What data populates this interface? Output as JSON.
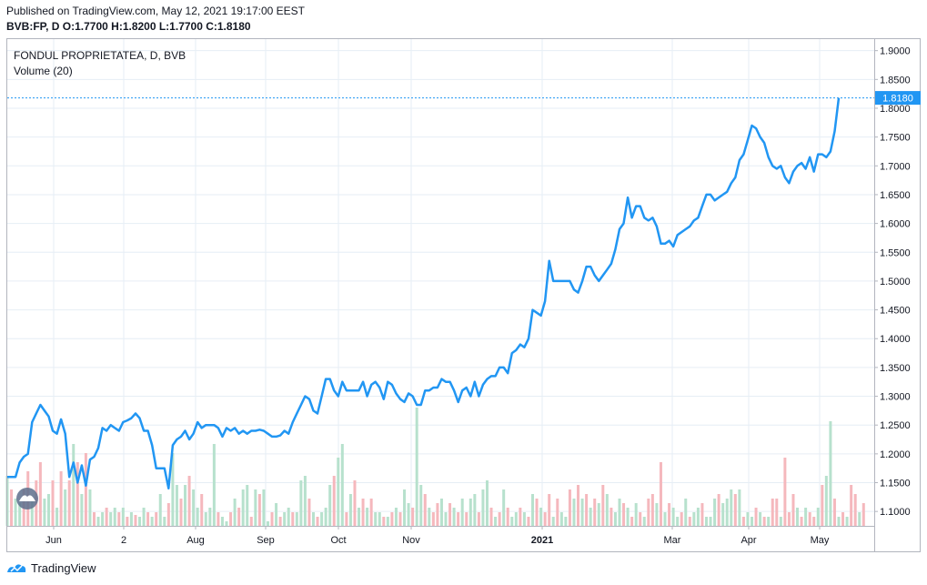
{
  "header": {
    "published": "Published on TradingView.com, May 12, 2021 19:17:00 EEST",
    "ohlc": "BVB:FP, D  O:1.7700  H:1.8200  L:1.7700  C:1.8180"
  },
  "legend": {
    "symbol": "FONDUL PROPRIETATEA, D, BVB",
    "volume": "Volume (20)"
  },
  "footer": {
    "brand": "TradingView"
  },
  "colors": {
    "line": "#2196f3",
    "last_price_label": "#2196f3",
    "volume_up": "#b7e1cd",
    "volume_down": "#f5b8bd",
    "grid": "#e6eef5"
  },
  "chart_data": {
    "type": "line",
    "title": "FONDUL PROPRIETATEA, D, BVB",
    "x_ticks": [
      "Jun",
      "2",
      "Aug",
      "Sep",
      "Oct",
      "Nov",
      "2021",
      "Mar",
      "Apr",
      "May"
    ],
    "y_ticks": [
      "1.9000",
      "1.8500",
      "1.8000",
      "1.7500",
      "1.7000",
      "1.6500",
      "1.6000",
      "1.5500",
      "1.5000",
      "1.4500",
      "1.4000",
      "1.3500",
      "1.3000",
      "1.2500",
      "1.2000",
      "1.1500",
      "1.1000"
    ],
    "ylim": [
      1.075,
      1.92
    ],
    "last_price": "1.8180",
    "grid": true,
    "series": [
      {
        "values": [
          1.16,
          1.16,
          1.16,
          1.185,
          1.195,
          1.2,
          1.255,
          1.27,
          1.285,
          1.275,
          1.265,
          1.24,
          1.235,
          1.26,
          1.235,
          1.16,
          1.185,
          1.15,
          1.18,
          1.145,
          1.19,
          1.195,
          1.21,
          1.245,
          1.24,
          1.25,
          1.245,
          1.24,
          1.255,
          1.258,
          1.262,
          1.27,
          1.262,
          1.24,
          1.24,
          1.215,
          1.175,
          1.175,
          1.175,
          1.14,
          1.215,
          1.225,
          1.23,
          1.24,
          1.225,
          1.235,
          1.255,
          1.245,
          1.25,
          1.25,
          1.25,
          1.245,
          1.23,
          1.245,
          1.24,
          1.245,
          1.235,
          1.24,
          1.235,
          1.24,
          1.24,
          1.242,
          1.24,
          1.235,
          1.23,
          1.23,
          1.232,
          1.24,
          1.235,
          1.255,
          1.27,
          1.285,
          1.3,
          1.295,
          1.275,
          1.27,
          1.3,
          1.33,
          1.33,
          1.31,
          1.3,
          1.325,
          1.31,
          1.31,
          1.31,
          1.31,
          1.325,
          1.3,
          1.32,
          1.325,
          1.315,
          1.295,
          1.325,
          1.32,
          1.305,
          1.295,
          1.29,
          1.305,
          1.3,
          1.285,
          1.285,
          1.31,
          1.31,
          1.315,
          1.315,
          1.33,
          1.325,
          1.325,
          1.31,
          1.29,
          1.31,
          1.315,
          1.3,
          1.325,
          1.3,
          1.32,
          1.33,
          1.335,
          1.335,
          1.35,
          1.35,
          1.34,
          1.375,
          1.38,
          1.39,
          1.385,
          1.4,
          1.45,
          1.445,
          1.44,
          1.465,
          1.535,
          1.5,
          1.5,
          1.5,
          1.5,
          1.5,
          1.485,
          1.48,
          1.5,
          1.525,
          1.525,
          1.51,
          1.5,
          1.51,
          1.52,
          1.53,
          1.555,
          1.59,
          1.6,
          1.645,
          1.61,
          1.63,
          1.63,
          1.61,
          1.605,
          1.61,
          1.595,
          1.565,
          1.565,
          1.57,
          1.56,
          1.58,
          1.585,
          1.59,
          1.595,
          1.605,
          1.61,
          1.63,
          1.65,
          1.65,
          1.64,
          1.645,
          1.65,
          1.655,
          1.67,
          1.68,
          1.71,
          1.72,
          1.745,
          1.77,
          1.765,
          1.75,
          1.74,
          1.715,
          1.7,
          1.695,
          1.7,
          1.68,
          1.67,
          1.69,
          1.7,
          1.705,
          1.695,
          1.715,
          1.69,
          1.72,
          1.72,
          1.715,
          1.725,
          1.76,
          1.818
        ]
      }
    ],
    "volume": {
      "name": "Volume (20)",
      "values_relative": [
        0.55,
        0.4,
        0.3,
        0.25,
        0.4,
        0.6,
        0.3,
        0.5,
        0.7,
        0.3,
        0.35,
        0.5,
        0.2,
        0.6,
        0.4,
        0.5,
        0.9,
        0.7,
        0.35,
        0.8,
        0.4,
        0.15,
        0.1,
        0.15,
        0.2,
        0.15,
        0.2,
        0.15,
        0.2,
        0.1,
        0.15,
        0.12,
        0.1,
        0.2,
        0.15,
        0.1,
        0.15,
        0.35,
        0.1,
        0.25,
        0.8,
        0.45,
        0.3,
        0.45,
        0.55,
        0.4,
        0.2,
        0.35,
        0.15,
        0.2,
        0.9,
        0.15,
        0.1,
        0.05,
        0.15,
        0.3,
        0.2,
        0.4,
        0.45,
        0.1,
        0.4,
        0.35,
        0.4,
        0.05,
        0.15,
        0.25,
        0.1,
        0.15,
        0.2,
        0.15,
        0.15,
        0.5,
        0.55,
        0.3,
        0.15,
        0.1,
        0.15,
        0.2,
        0.45,
        0.55,
        0.75,
        0.9,
        0.15,
        0.35,
        0.5,
        0.2,
        0.3,
        0.2,
        0.3,
        0.15,
        0.15,
        0.1,
        0.1,
        0.15,
        0.2,
        0.15,
        0.4,
        0.25,
        0.2,
        1.3,
        0.45,
        0.35,
        0.2,
        0.15,
        0.25,
        0.3,
        0.15,
        0.25,
        0.2,
        0.15,
        0.3,
        0.15,
        0.3,
        0.35,
        0.15,
        0.4,
        0.5,
        0.2,
        0.1,
        0.15,
        0.4,
        0.2,
        0.1,
        0.15,
        0.2,
        0.15,
        0.1,
        0.35,
        0.3,
        0.2,
        0.15,
        0.35,
        0.1,
        0.3,
        0.15,
        0.1,
        0.4,
        0.3,
        0.45,
        0.3,
        0.35,
        0.2,
        0.3,
        0.25,
        0.45,
        0.35,
        0.2,
        0.15,
        0.3,
        0.25,
        0.2,
        0.1,
        0.25,
        0.15,
        0.1,
        0.3,
        0.35,
        0.25,
        0.7,
        0.15,
        0.25,
        0.2,
        0.1,
        0.15,
        0.3,
        0.1,
        0.15,
        0.2,
        0.25,
        0.1,
        0.1,
        0.3,
        0.35,
        0.25,
        0.3,
        0.4,
        0.35,
        0.4,
        0.1,
        0.15,
        0.1,
        0.2,
        0.15,
        0.1,
        0.1,
        0.3,
        0.3,
        0.1,
        0.75,
        0.15,
        0.35,
        0.2,
        0.1,
        0.2,
        0.15,
        0.1,
        0.2,
        0.45,
        0.55,
        1.15,
        0.3,
        0.1,
        0.15,
        0.1,
        0.45,
        0.35,
        0.15,
        0.25
      ],
      "up": [
        1,
        0,
        1,
        1,
        0,
        0,
        1,
        0,
        0,
        1,
        1,
        0,
        1,
        0,
        1,
        0,
        1,
        0,
        1,
        0,
        1,
        0,
        1,
        1,
        0,
        1,
        1,
        0,
        1,
        0,
        1,
        0,
        1,
        1,
        0,
        1,
        0,
        1,
        1,
        0,
        1,
        1,
        0,
        1,
        0,
        1,
        1,
        0,
        1,
        1,
        1,
        0,
        1,
        1,
        0,
        1,
        0,
        1,
        1,
        0,
        1,
        0,
        1,
        1,
        0,
        1,
        0,
        1,
        1,
        0,
        1,
        1,
        1,
        0,
        1,
        0,
        1,
        1,
        1,
        0,
        1,
        1,
        0,
        1,
        0,
        1,
        0,
        1,
        0,
        1,
        1,
        0,
        1,
        0,
        1,
        0,
        1,
        1,
        0,
        1,
        1,
        0,
        1,
        0,
        0,
        1,
        1,
        0,
        1,
        0,
        1,
        0,
        1,
        1,
        0,
        1,
        1,
        0,
        1,
        0,
        1,
        0,
        1,
        1,
        0,
        1,
        0,
        1,
        0,
        1,
        0,
        0,
        1,
        0,
        1,
        1,
        0,
        1,
        0,
        1,
        0,
        1,
        0,
        1,
        0,
        1,
        0,
        1,
        1,
        0,
        1,
        0,
        1,
        0,
        1,
        0,
        0,
        1,
        0,
        1,
        0,
        1,
        1,
        0,
        1,
        0,
        1,
        1,
        0,
        1,
        1,
        1,
        0,
        1,
        1,
        1,
        0,
        1,
        0,
        1,
        1,
        0,
        1,
        0,
        1,
        0,
        0,
        1,
        0,
        0,
        0,
        1,
        0,
        1,
        0,
        0,
        1,
        0,
        1,
        1,
        0,
        1,
        0,
        1,
        0,
        0,
        1,
        0,
        1,
        0,
        0,
        1
      ]
    }
  }
}
